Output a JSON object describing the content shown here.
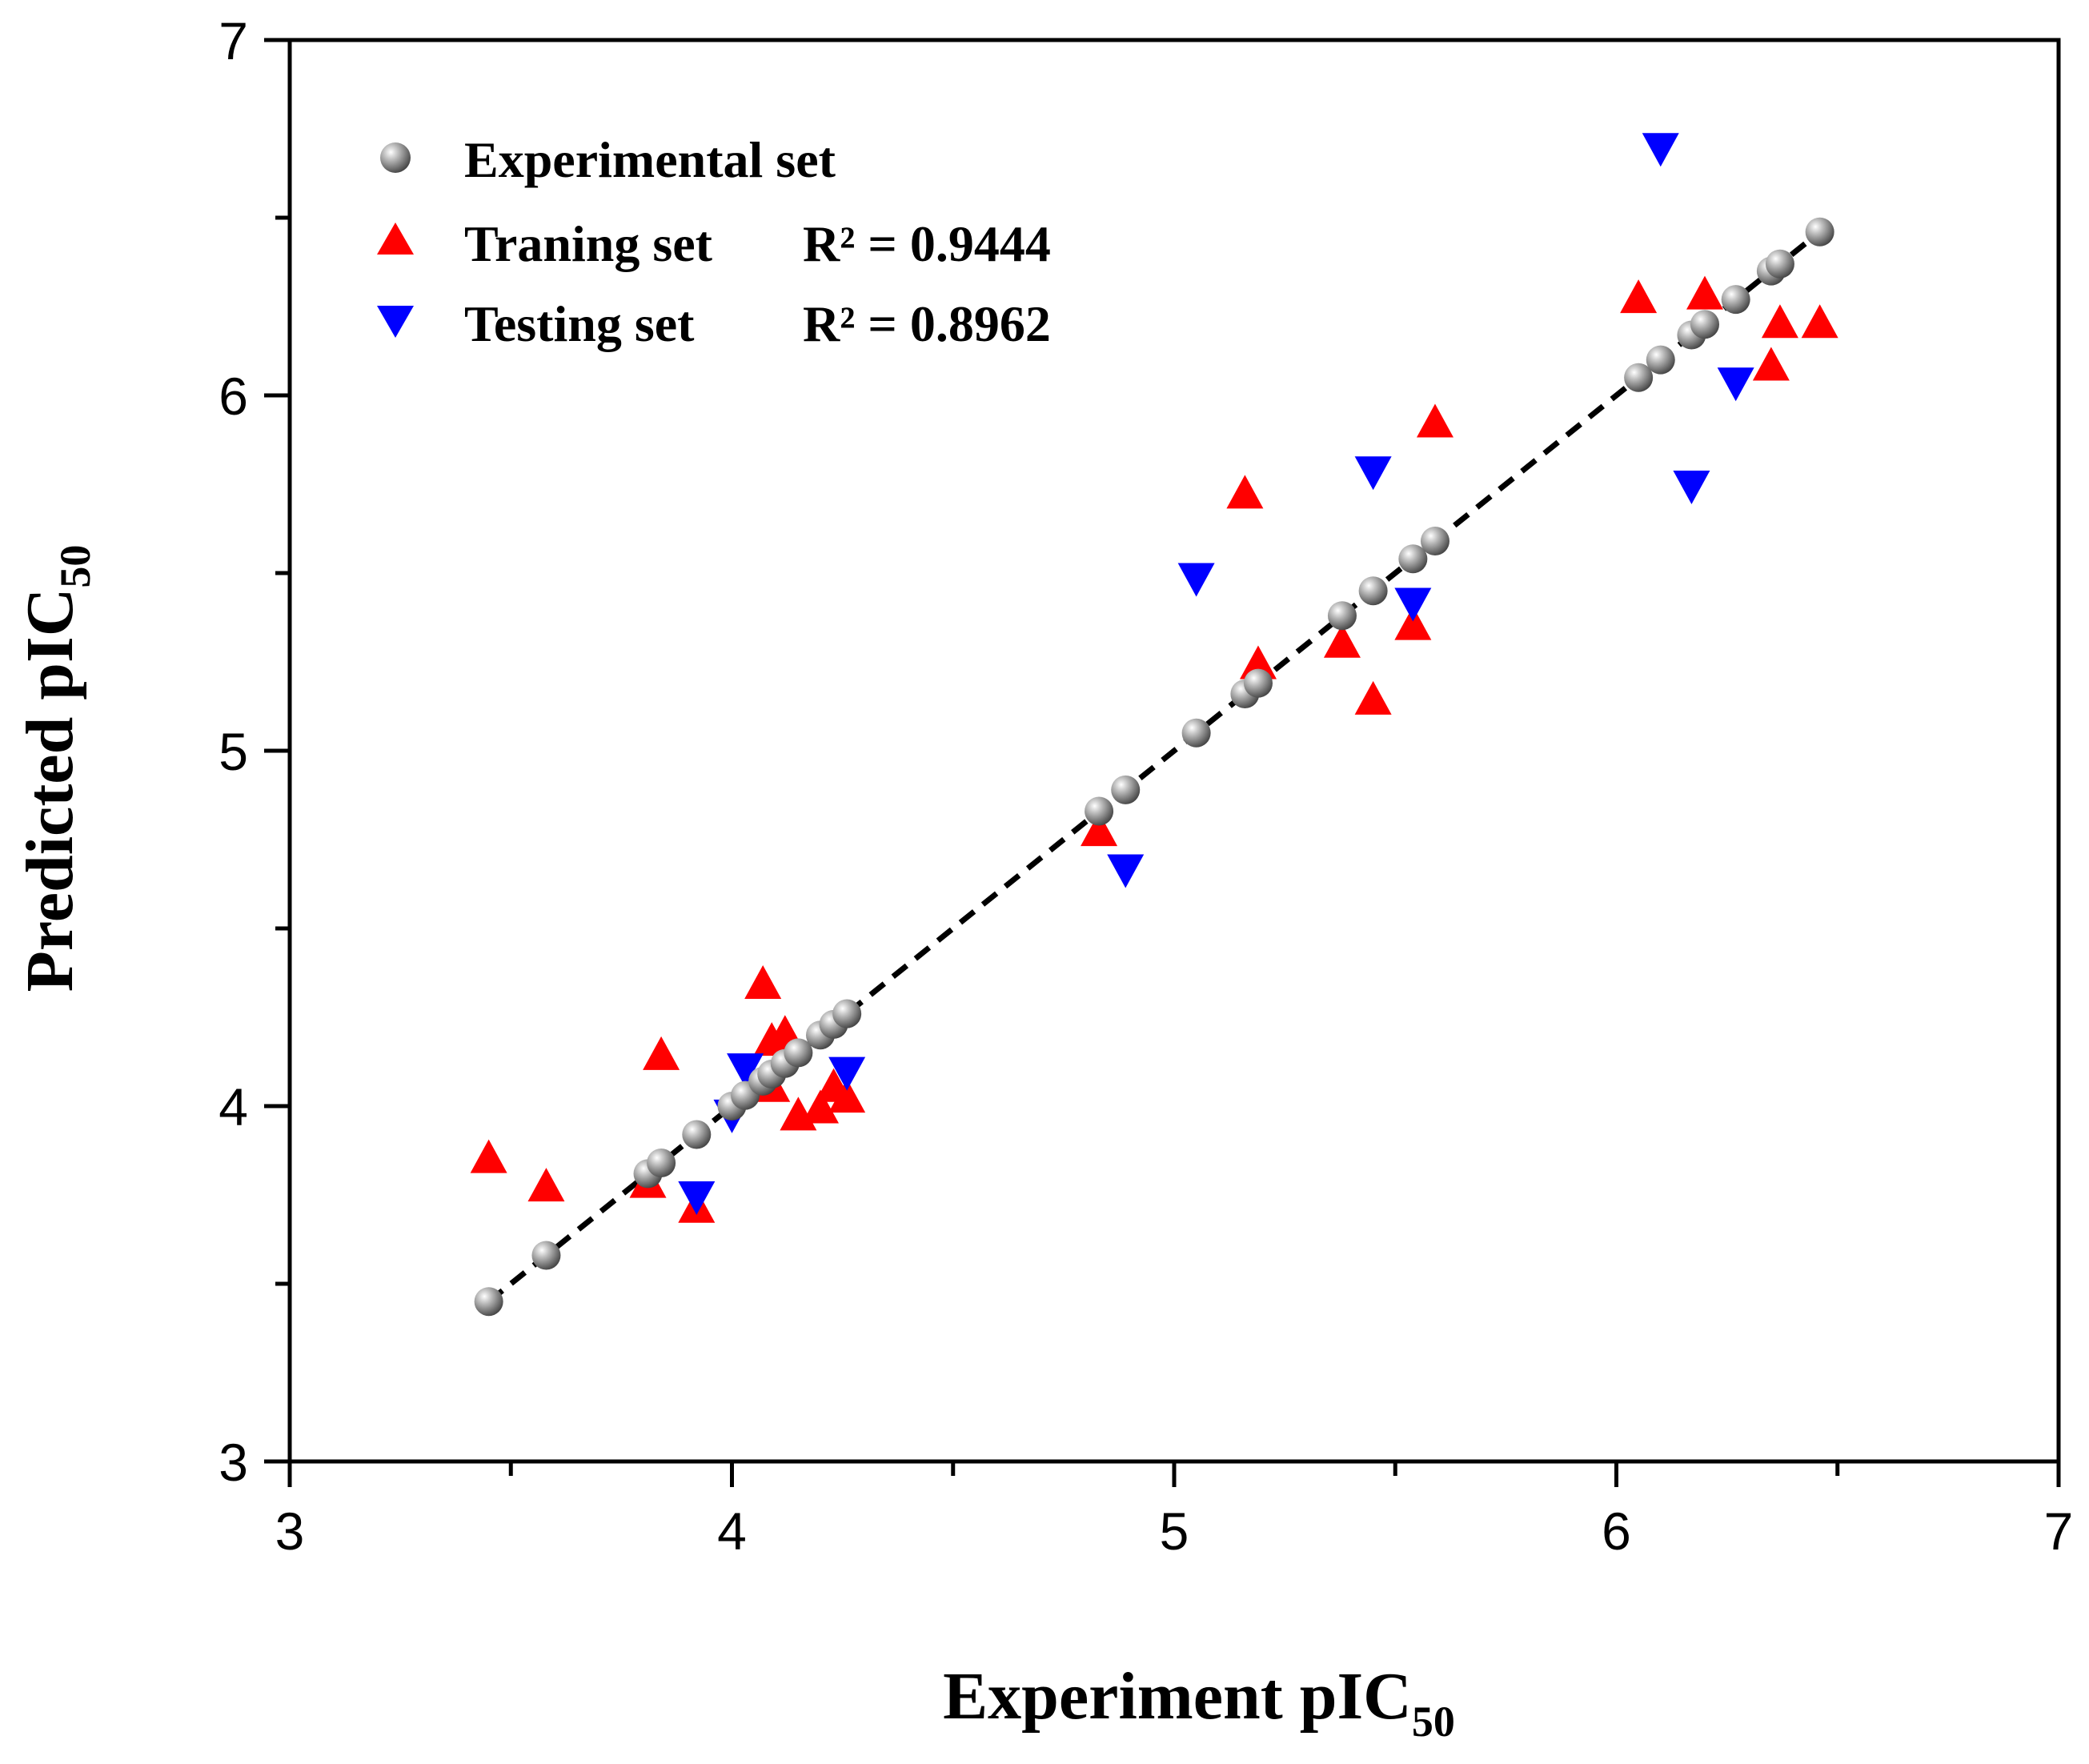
{
  "chart_data": {
    "type": "scatter",
    "title": "",
    "xlabel": {
      "main": "Experiment pIC",
      "sub": "50"
    },
    "ylabel": {
      "main": "Predicted pIC",
      "sub": "50"
    },
    "xlim": [
      3,
      7
    ],
    "ylim": [
      3,
      7
    ],
    "xticks": [
      "3",
      "4",
      "5",
      "6",
      "7"
    ],
    "yticks": [
      "3",
      "4",
      "5",
      "6",
      "7"
    ],
    "legend_position": "top-left",
    "fit_line": {
      "x": [
        3.45,
        6.45
      ],
      "y": [
        3.45,
        6.45
      ],
      "style": "dashed",
      "color": "#000000"
    },
    "series": [
      {
        "name": "Experimental set",
        "r2": "",
        "marker": "sphere",
        "color": "#8a8a8a",
        "points": [
          [
            3.45,
            3.45
          ],
          [
            3.58,
            3.58
          ],
          [
            3.81,
            3.81
          ],
          [
            3.84,
            3.84
          ],
          [
            3.92,
            3.92
          ],
          [
            4.0,
            4.0
          ],
          [
            4.03,
            4.03
          ],
          [
            4.07,
            4.07
          ],
          [
            4.09,
            4.09
          ],
          [
            4.12,
            4.12
          ],
          [
            4.15,
            4.15
          ],
          [
            4.2,
            4.2
          ],
          [
            4.23,
            4.23
          ],
          [
            4.26,
            4.26
          ],
          [
            4.83,
            4.83
          ],
          [
            4.89,
            4.89
          ],
          [
            5.05,
            5.05
          ],
          [
            5.16,
            5.16
          ],
          [
            5.19,
            5.19
          ],
          [
            5.38,
            5.38
          ],
          [
            5.45,
            5.45
          ],
          [
            5.54,
            5.54
          ],
          [
            5.59,
            5.59
          ],
          [
            6.05,
            6.05
          ],
          [
            6.1,
            6.1
          ],
          [
            6.17,
            6.17
          ],
          [
            6.2,
            6.2
          ],
          [
            6.27,
            6.27
          ],
          [
            6.35,
            6.35
          ],
          [
            6.37,
            6.37
          ],
          [
            6.46,
            6.46
          ]
        ]
      },
      {
        "name": "Traning set",
        "r2": "R² = 0.9444",
        "marker": "triangle-up",
        "color": "#ff0000",
        "points": [
          [
            3.45,
            3.85
          ],
          [
            3.58,
            3.77
          ],
          [
            3.81,
            3.78
          ],
          [
            3.84,
            4.14
          ],
          [
            3.92,
            3.71
          ],
          [
            4.07,
            4.34
          ],
          [
            4.09,
            4.18
          ],
          [
            4.09,
            4.05
          ],
          [
            4.12,
            4.2
          ],
          [
            4.15,
            3.97
          ],
          [
            4.2,
            3.99
          ],
          [
            4.23,
            4.05
          ],
          [
            4.26,
            4.02
          ],
          [
            4.83,
            4.77
          ],
          [
            5.16,
            5.72
          ],
          [
            5.19,
            5.24
          ],
          [
            5.38,
            5.3
          ],
          [
            5.45,
            5.14
          ],
          [
            5.54,
            5.35
          ],
          [
            5.59,
            5.92
          ],
          [
            6.05,
            6.27
          ],
          [
            6.2,
            6.28
          ],
          [
            6.35,
            6.08
          ],
          [
            6.37,
            6.2
          ],
          [
            6.46,
            6.2
          ]
        ]
      },
      {
        "name": "Testing set",
        "r2": "R² = 0.8962",
        "marker": "triangle-down",
        "color": "#0000ff",
        "points": [
          [
            3.92,
            3.75
          ],
          [
            4.0,
            3.98
          ],
          [
            4.03,
            4.11
          ],
          [
            4.26,
            4.1
          ],
          [
            4.89,
            4.67
          ],
          [
            5.05,
            5.49
          ],
          [
            5.45,
            5.79
          ],
          [
            5.54,
            5.42
          ],
          [
            6.1,
            6.7
          ],
          [
            6.17,
            5.75
          ],
          [
            6.27,
            6.04
          ]
        ]
      }
    ]
  }
}
